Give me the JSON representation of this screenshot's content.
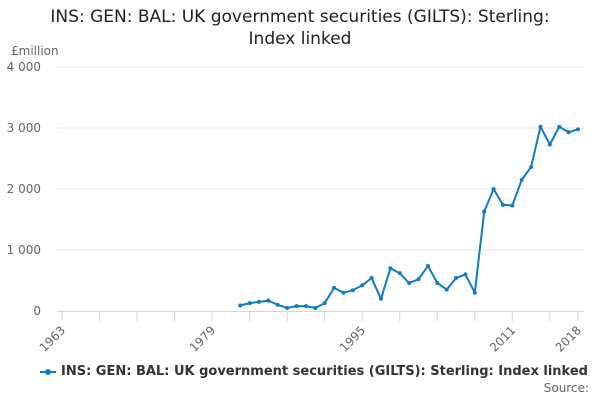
{
  "chart_data": {
    "type": "line",
    "title": "INS: GEN: BAL: UK government securities (GILTS): Sterling: Index linked",
    "xlabel": "",
    "ylabel": "£million",
    "ylim": [
      0,
      4000
    ],
    "xlim": [
      1963,
      2018
    ],
    "yticks": [
      0,
      1000,
      2000,
      3000,
      4000
    ],
    "ytick_labels": [
      "0",
      "1 000",
      "2 000",
      "3 000",
      "4 000"
    ],
    "xtick_labels": [
      "1963",
      "1979",
      "1995",
      "2011",
      "2018"
    ],
    "grid": true,
    "legend_position": "bottom",
    "series": [
      {
        "name": "INS: GEN: BAL: UK government securities (GILTS): Sterling: Index linked",
        "color": "#0e7dc2",
        "x": [
          1982,
          1983,
          1984,
          1985,
          1986,
          1987,
          1988,
          1989,
          1990,
          1991,
          1992,
          1993,
          1994,
          1995,
          1996,
          1997,
          1998,
          1999,
          2000,
          2001,
          2002,
          2003,
          2004,
          2005,
          2006,
          2007,
          2008,
          2009,
          2010,
          2011,
          2012,
          2013,
          2014,
          2015,
          2016,
          2017,
          2018
        ],
        "values": [
          90,
          130,
          150,
          170,
          100,
          50,
          80,
          80,
          50,
          130,
          380,
          300,
          340,
          420,
          540,
          200,
          700,
          620,
          460,
          520,
          740,
          460,
          350,
          540,
          600,
          300,
          1630,
          2000,
          1740,
          1730,
          2150,
          2360,
          3020,
          2730,
          3020,
          2930,
          2980
        ]
      }
    ]
  },
  "header": {
    "title_line1": "INS: GEN: BAL: UK government securities (GILTS): Sterling:",
    "title_line2": "Index linked",
    "unit_label": "£million"
  },
  "legend": {
    "label": "INS: GEN: BAL: UK government securities (GILTS): Sterling: Index linked"
  },
  "footer": {
    "source_label": "Source:"
  }
}
